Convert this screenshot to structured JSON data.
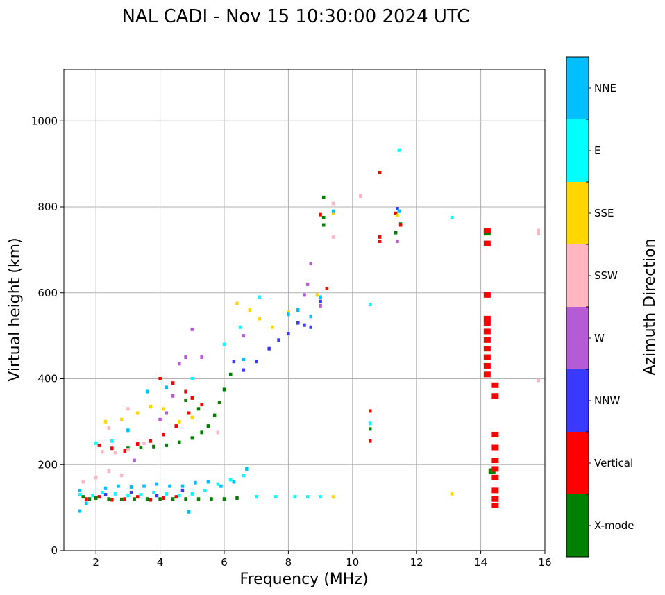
{
  "chart_data": {
    "type": "scatter",
    "title": "NAL CADI - Nov 15 10:30:00 2024 UTC",
    "xlabel": "Frequency (MHz)",
    "ylabel": "Virtual height (km)",
    "xlim": [
      1,
      16
    ],
    "ylim": [
      0,
      1120
    ],
    "xticks": [
      2,
      4,
      6,
      8,
      10,
      12,
      14,
      16
    ],
    "yticks": [
      0,
      200,
      400,
      600,
      800,
      1000
    ],
    "grid": true,
    "colorbar": {
      "label": "Azimuth Direction",
      "categories": [
        {
          "name": "X-mode",
          "color": "#008000"
        },
        {
          "name": "Vertical",
          "color": "#ff0000"
        },
        {
          "name": "NNW",
          "color": "#3a3aff"
        },
        {
          "name": "W",
          "color": "#b65bd6"
        },
        {
          "name": "SSW",
          "color": "#ffb6c1"
        },
        {
          "name": "SSE",
          "color": "#ffd700"
        },
        {
          "name": "E",
          "color": "#00ffff"
        },
        {
          "name": "NNE",
          "color": "#00bfff"
        }
      ]
    },
    "series": [
      {
        "name": "X-mode",
        "points": [
          [
            1.6,
            125
          ],
          [
            1.8,
            120
          ],
          [
            2.0,
            122
          ],
          [
            2.4,
            120
          ],
          [
            2.8,
            119
          ],
          [
            3.2,
            120
          ],
          [
            3.6,
            120
          ],
          [
            4.0,
            120
          ],
          [
            4.4,
            120
          ],
          [
            4.8,
            120
          ],
          [
            5.2,
            120
          ],
          [
            5.6,
            120
          ],
          [
            6.0,
            120
          ],
          [
            6.4,
            122
          ],
          [
            3.0,
            238
          ],
          [
            3.4,
            240
          ],
          [
            3.8,
            242
          ],
          [
            4.2,
            245
          ],
          [
            4.6,
            252
          ],
          [
            5.0,
            262
          ],
          [
            5.3,
            275
          ],
          [
            5.5,
            290
          ],
          [
            5.7,
            315
          ],
          [
            5.85,
            345
          ],
          [
            6.0,
            375
          ],
          [
            6.2,
            410
          ],
          [
            4.8,
            350
          ],
          [
            5.2,
            330
          ],
          [
            9.1,
            822
          ],
          [
            9.1,
            775
          ],
          [
            9.1,
            758
          ],
          [
            10.55,
            283
          ],
          [
            11.35,
            740
          ],
          [
            11.5,
            760
          ],
          [
            14.2,
            740
          ],
          [
            14.35,
            185
          ]
        ]
      },
      {
        "name": "Vertical",
        "points": [
          [
            1.7,
            120
          ],
          [
            2.1,
            125
          ],
          [
            2.5,
            118
          ],
          [
            2.9,
            120
          ],
          [
            3.3,
            125
          ],
          [
            3.7,
            118
          ],
          [
            4.1,
            122
          ],
          [
            4.5,
            125
          ],
          [
            2.1,
            245
          ],
          [
            2.5,
            238
          ],
          [
            2.9,
            232
          ],
          [
            3.3,
            248
          ],
          [
            3.7,
            255
          ],
          [
            4.1,
            270
          ],
          [
            4.5,
            290
          ],
          [
            4.9,
            320
          ],
          [
            5.3,
            340
          ],
          [
            4.0,
            400
          ],
          [
            4.4,
            390
          ],
          [
            4.8,
            370
          ],
          [
            5.0,
            355
          ],
          [
            9.2,
            610
          ],
          [
            9.0,
            782
          ],
          [
            10.55,
            325
          ],
          [
            10.55,
            255
          ],
          [
            10.85,
            880
          ],
          [
            10.85,
            730
          ],
          [
            10.85,
            720
          ],
          [
            11.35,
            785
          ],
          [
            11.5,
            758
          ],
          [
            14.2,
            745
          ],
          [
            14.2,
            715
          ],
          [
            14.2,
            595
          ],
          [
            14.2,
            540
          ],
          [
            14.2,
            530
          ],
          [
            14.2,
            510
          ],
          [
            14.2,
            490
          ],
          [
            14.2,
            470
          ],
          [
            14.2,
            450
          ],
          [
            14.2,
            430
          ],
          [
            14.2,
            410
          ],
          [
            14.45,
            385
          ],
          [
            14.45,
            360
          ],
          [
            14.45,
            270
          ],
          [
            14.45,
            240
          ],
          [
            14.45,
            210
          ],
          [
            14.45,
            190
          ],
          [
            14.45,
            170
          ],
          [
            14.45,
            140
          ],
          [
            14.45,
            120
          ],
          [
            14.45,
            105
          ]
        ]
      },
      {
        "name": "NNW",
        "points": [
          [
            2.3,
            130
          ],
          [
            3.1,
            135
          ],
          [
            3.9,
            128
          ],
          [
            4.7,
            140
          ],
          [
            6.3,
            440
          ],
          [
            6.6,
            420
          ],
          [
            7.0,
            440
          ],
          [
            7.4,
            470
          ],
          [
            7.7,
            490
          ],
          [
            8.0,
            505
          ],
          [
            8.3,
            530
          ],
          [
            8.5,
            525
          ],
          [
            8.7,
            520
          ],
          [
            9.0,
            580
          ],
          [
            11.4,
            796
          ]
        ]
      },
      {
        "name": "W",
        "points": [
          [
            4.0,
            305
          ],
          [
            4.2,
            320
          ],
          [
            4.4,
            360
          ],
          [
            4.6,
            435
          ],
          [
            4.8,
            450
          ],
          [
            5.0,
            515
          ],
          [
            5.3,
            450
          ],
          [
            3.2,
            210
          ],
          [
            6.6,
            500
          ],
          [
            8.5,
            595
          ],
          [
            8.6,
            620
          ],
          [
            8.7,
            668
          ],
          [
            9.0,
            570
          ],
          [
            11.4,
            720
          ]
        ]
      },
      {
        "name": "SSW",
        "points": [
          [
            1.6,
            160
          ],
          [
            2.0,
            170
          ],
          [
            2.4,
            185
          ],
          [
            2.8,
            175
          ],
          [
            2.2,
            230
          ],
          [
            2.6,
            228
          ],
          [
            3.0,
            235
          ],
          [
            3.5,
            250
          ],
          [
            2.4,
            285
          ],
          [
            3.0,
            330
          ],
          [
            5.8,
            275
          ],
          [
            9.4,
            808
          ],
          [
            9.4,
            730
          ],
          [
            10.25,
            825
          ],
          [
            15.8,
            745
          ],
          [
            15.8,
            738
          ],
          [
            15.8,
            396
          ]
        ]
      },
      {
        "name": "SSE",
        "points": [
          [
            2.3,
            300
          ],
          [
            2.8,
            305
          ],
          [
            3.3,
            320
          ],
          [
            3.7,
            335
          ],
          [
            4.1,
            330
          ],
          [
            4.6,
            300
          ],
          [
            5.0,
            310
          ],
          [
            6.4,
            575
          ],
          [
            6.8,
            560
          ],
          [
            7.1,
            540
          ],
          [
            7.5,
            520
          ],
          [
            8.0,
            555
          ],
          [
            8.9,
            595
          ],
          [
            9.4,
            785
          ],
          [
            9.4,
            125
          ],
          [
            13.1,
            132
          ],
          [
            11.4,
            780
          ]
        ]
      },
      {
        "name": "E",
        "points": [
          [
            1.5,
            130
          ],
          [
            1.9,
            128
          ],
          [
            2.2,
            135
          ],
          [
            2.6,
            132
          ],
          [
            3.0,
            128
          ],
          [
            3.4,
            130
          ],
          [
            3.8,
            135
          ],
          [
            4.2,
            132
          ],
          [
            4.6,
            128
          ],
          [
            5.0,
            132
          ],
          [
            5.4,
            140
          ],
          [
            5.8,
            155
          ],
          [
            6.2,
            165
          ],
          [
            6.6,
            175
          ],
          [
            7.0,
            125
          ],
          [
            7.6,
            125
          ],
          [
            8.2,
            125
          ],
          [
            8.6,
            125
          ],
          [
            9.0,
            125
          ],
          [
            2.0,
            250
          ],
          [
            2.5,
            255
          ],
          [
            5.0,
            400
          ],
          [
            6.0,
            480
          ],
          [
            6.5,
            520
          ],
          [
            7.1,
            590
          ],
          [
            10.55,
            573
          ],
          [
            10.55,
            296
          ],
          [
            11.45,
            932
          ],
          [
            13.1,
            775
          ]
        ]
      },
      {
        "name": "NNE",
        "points": [
          [
            1.5,
            140
          ],
          [
            1.7,
            110
          ],
          [
            1.5,
            92
          ],
          [
            2.3,
            145
          ],
          [
            2.7,
            150
          ],
          [
            3.1,
            148
          ],
          [
            3.5,
            150
          ],
          [
            3.9,
            155
          ],
          [
            4.3,
            150
          ],
          [
            4.7,
            150
          ],
          [
            5.1,
            158
          ],
          [
            5.5,
            160
          ],
          [
            5.9,
            150
          ],
          [
            6.3,
            160
          ],
          [
            6.7,
            190
          ],
          [
            3.0,
            280
          ],
          [
            3.6,
            370
          ],
          [
            4.2,
            380
          ],
          [
            6.6,
            445
          ],
          [
            8.0,
            550
          ],
          [
            8.3,
            560
          ],
          [
            8.7,
            545
          ],
          [
            9.0,
            590
          ],
          [
            9.4,
            790
          ],
          [
            11.45,
            790
          ],
          [
            4.9,
            90
          ]
        ]
      }
    ]
  }
}
